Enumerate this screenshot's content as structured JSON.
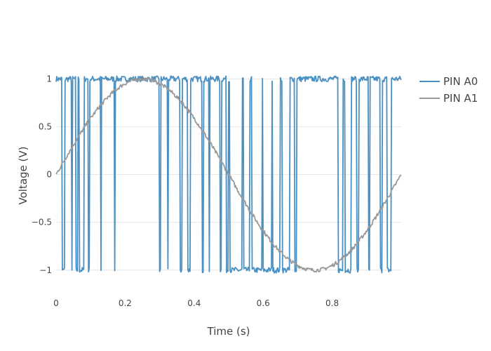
{
  "chart_data": {
    "type": "line",
    "xlabel": "Time (s)",
    "ylabel": "Voltage (V)",
    "xlim": [
      0,
      1
    ],
    "ylim": [
      -1.2,
      1.15
    ],
    "x_ticks": [
      0,
      0.2,
      0.4,
      0.6,
      0.8
    ],
    "x_tick_labels": [
      "0",
      "0.2",
      "0.4",
      "0.6",
      "0.8"
    ],
    "y_ticks": [
      1,
      0.5,
      0,
      -0.5,
      -1
    ],
    "y_tick_labels": [
      "1",
      "0.5",
      "0",
      "−0.5",
      "−1"
    ],
    "grid": true,
    "legend_position": "top-right",
    "series": [
      {
        "name": "PIN A0",
        "color": "#4a90c2",
        "signal": "square",
        "levels": [
          1,
          -1
        ],
        "x_start": 0,
        "x_end": 1,
        "transitions": [
          0.018,
          0.026,
          0.045,
          0.048,
          0.058,
          0.064,
          0.067,
          0.082,
          0.094,
          0.097,
          0.13,
          0.132,
          0.17,
          0.172,
          0.3,
          0.303,
          0.323,
          0.325,
          0.36,
          0.365,
          0.382,
          0.39,
          0.424,
          0.427,
          0.444,
          0.446,
          0.475,
          0.479,
          0.493,
          0.499,
          0.503,
          0.54,
          0.544,
          0.562,
          0.567,
          0.597,
          0.6,
          0.625,
          0.628,
          0.649,
          0.655,
          0.678,
          0.692,
          0.697,
          0.817,
          0.832,
          0.837,
          0.855,
          0.872,
          0.878,
          0.906,
          0.91,
          0.94,
          0.945,
          0.96,
          0.972
        ]
      },
      {
        "name": "PIN A1",
        "color": "#999999",
        "signal": "sine",
        "amplitude": 1,
        "frequency_hz": 1,
        "phase": 0,
        "x_start": 0,
        "x_end": 1
      }
    ]
  }
}
